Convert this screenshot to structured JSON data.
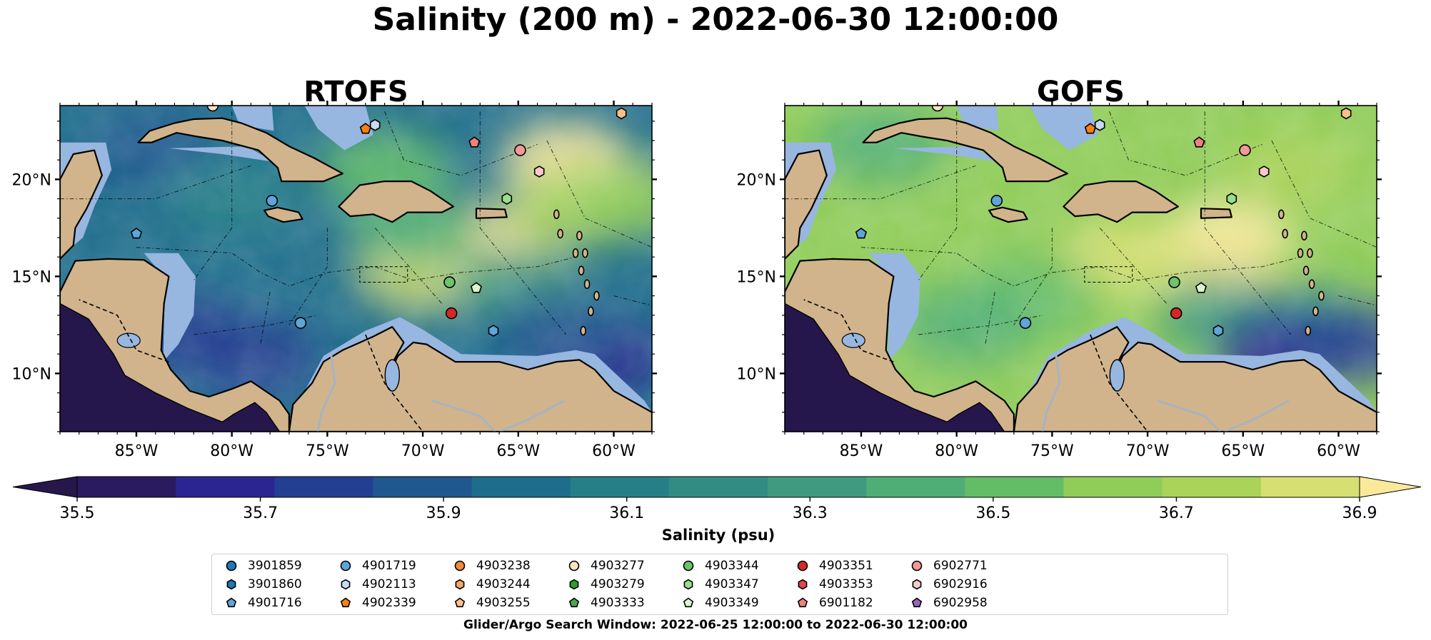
{
  "figure": {
    "title": "Salinity (200 m) - 2022-06-30 12:00:00",
    "search_window": "Glider/Argo Search Window: 2022-06-25 12:00:00 to 2022-06-30 12:00:00"
  },
  "colors": {
    "land": "#d1b48c",
    "shelf": "#97b6e0",
    "river": "#a7b3c3",
    "frame": "#000000",
    "colormap": [
      "#2a1a5e",
      "#2b2591",
      "#233f91",
      "#1f588f",
      "#1e6d8c",
      "#267f87",
      "#328c84",
      "#3f9a80",
      "#4fae75",
      "#62bd66",
      "#8fcc58",
      "#aad359",
      "#d6df71"
    ],
    "over": "#fbe99b",
    "under": "#25174c"
  },
  "chart_data": [
    {
      "type": "heatmap",
      "panel": "left",
      "title": "RTOFS",
      "field": "Salinity (psu)",
      "xlim": [
        -89.0,
        -58.0
      ],
      "ylim": [
        7.0,
        23.8
      ],
      "xticks": [
        {
          "value": -85,
          "label": "85°W"
        },
        {
          "value": -80,
          "label": "80°W"
        },
        {
          "value": -75,
          "label": "75°W"
        },
        {
          "value": -70,
          "label": "70°W"
        },
        {
          "value": -65,
          "label": "65°W"
        },
        {
          "value": -60,
          "label": "60°W"
        }
      ],
      "yticks": [
        {
          "value": 10,
          "label": "10°N"
        },
        {
          "value": 15,
          "label": "15°N"
        },
        {
          "value": 20,
          "label": "20°N"
        }
      ],
      "background_level": 4,
      "patches": [
        {
          "lon": -62.5,
          "lat": 21.0,
          "level": 13
        },
        {
          "lon": -66.5,
          "lat": 16.8,
          "level": 13
        },
        {
          "lon": -70.0,
          "lat": 15.2,
          "level": 12
        },
        {
          "lon": -62.0,
          "lat": 18.5,
          "level": 11
        },
        {
          "lon": -59.0,
          "lat": 19.0,
          "level": 10
        },
        {
          "lon": -72.0,
          "lat": 20.5,
          "level": 9
        },
        {
          "lon": -70.5,
          "lat": 17.5,
          "level": 8
        },
        {
          "lon": -65.0,
          "lat": 14.5,
          "level": 7
        },
        {
          "lon": -84.0,
          "lat": 21.5,
          "level": 3
        },
        {
          "lon": -80.0,
          "lat": 19.0,
          "level": 5
        },
        {
          "lon": -79.0,
          "lat": 10.8,
          "level": 2
        },
        {
          "lon": -82.5,
          "lat": 12.0,
          "level": 2
        },
        {
          "lon": -61.0,
          "lat": 10.8,
          "level": 1
        },
        {
          "lon": -63.0,
          "lat": 12.3,
          "level": 3
        }
      ]
    },
    {
      "type": "heatmap",
      "panel": "right",
      "title": "GOFS",
      "field": "Salinity (psu)",
      "xlim": [
        -89.0,
        -58.0
      ],
      "ylim": [
        7.0,
        23.8
      ],
      "xticks": [
        {
          "value": -85,
          "label": "85°W"
        },
        {
          "value": -80,
          "label": "80°W"
        },
        {
          "value": -75,
          "label": "75°W"
        },
        {
          "value": -70,
          "label": "70°W"
        },
        {
          "value": -65,
          "label": "65°W"
        },
        {
          "value": -60,
          "label": "60°W"
        }
      ],
      "yticks": [
        {
          "value": 10,
          "label": "10°N"
        },
        {
          "value": 15,
          "label": "15°N"
        },
        {
          "value": 20,
          "label": "20°N"
        }
      ],
      "background_level": 10,
      "patches": [
        {
          "lon": -66.0,
          "lat": 16.8,
          "level": 13
        },
        {
          "lon": -71.0,
          "lat": 16.0,
          "level": 12
        },
        {
          "lon": -62.5,
          "lat": 20.5,
          "level": 11
        },
        {
          "lon": -76.0,
          "lat": 14.0,
          "level": 9
        },
        {
          "lon": -79.5,
          "lat": 12.5,
          "level": 8
        },
        {
          "lon": -66.0,
          "lat": 13.0,
          "level": 7
        },
        {
          "lon": -62.0,
          "lat": 12.5,
          "level": 5
        },
        {
          "lon": -84.0,
          "lat": 21.8,
          "level": 8
        },
        {
          "lon": -63.0,
          "lat": 11.0,
          "level": 1
        },
        {
          "lon": -59.0,
          "lat": 11.5,
          "level": 2
        }
      ]
    },
    {
      "type": "colorbar",
      "label": "Salinity (psu)",
      "range": [
        35.5,
        36.9
      ],
      "levels": 14,
      "extend": "both",
      "ticks": [
        {
          "value": 35.5,
          "label": "35.5"
        },
        {
          "value": 35.7,
          "label": "35.7"
        },
        {
          "value": 35.9,
          "label": "35.9"
        },
        {
          "value": 36.1,
          "label": "36.1"
        },
        {
          "value": 36.3,
          "label": "36.3"
        },
        {
          "value": 36.5,
          "label": "36.5"
        },
        {
          "value": 36.7,
          "label": "36.7"
        },
        {
          "value": 36.9,
          "label": "36.9"
        }
      ]
    }
  ],
  "observations": [
    {
      "id": "3901859",
      "marker": "circle",
      "color": "#1f77b4",
      "lon": null,
      "lat": null
    },
    {
      "id": "3901860",
      "marker": "hexagon",
      "color": "#1f77b4",
      "lon": null,
      "lat": null
    },
    {
      "id": "4901716",
      "marker": "pentagon",
      "color": "#5fa4da",
      "lon": -85.0,
      "lat": 17.2
    },
    {
      "id": "4901719",
      "marker": "circle",
      "color": "#5fa4da",
      "lon": -76.4,
      "lat": 12.6
    },
    {
      "id": "4902113",
      "marker": "hexagon",
      "color": "#c6dbef",
      "lon": -72.5,
      "lat": 22.8
    },
    {
      "id": "4902339",
      "marker": "pentagon",
      "color": "#ff7f0e",
      "lon": -73.0,
      "lat": 22.6
    },
    {
      "id": "4903238",
      "marker": "circle",
      "color": "#f08a3c",
      "lon": null,
      "lat": null
    },
    {
      "id": "4903244",
      "marker": "hexagon",
      "color": "#f5a46a",
      "lon": null,
      "lat": null
    },
    {
      "id": "4903255",
      "marker": "pentagon",
      "color": "#fcbf8b",
      "lon": null,
      "lat": null
    },
    {
      "id": "4903277",
      "marker": "circle",
      "color": "#fde1c1",
      "lon": -81.0,
      "lat": 23.8
    },
    {
      "id": "4903279",
      "marker": "hexagon",
      "color": "#2ca02c",
      "lon": null,
      "lat": null
    },
    {
      "id": "4903333",
      "marker": "pentagon",
      "color": "#4aa84a",
      "lon": null,
      "lat": null
    },
    {
      "id": "4903344",
      "marker": "circle",
      "color": "#6cc46c",
      "lon": -68.6,
      "lat": 14.7
    },
    {
      "id": "4903347",
      "marker": "hexagon",
      "color": "#98df8a",
      "lon": -65.6,
      "lat": 19.0
    },
    {
      "id": "4903349",
      "marker": "pentagon",
      "color": "#d9f6cf",
      "lon": -67.2,
      "lat": 14.4
    },
    {
      "id": "4903351",
      "marker": "circle",
      "color": "#d62728",
      "lon": -68.5,
      "lat": 13.1
    },
    {
      "id": "4903353",
      "marker": "hexagon",
      "color": "#e0474a",
      "lon": null,
      "lat": null
    },
    {
      "id": "6901182",
      "marker": "pentagon",
      "color": "#f08080",
      "lon": -67.3,
      "lat": 21.9
    },
    {
      "id": "6902771",
      "marker": "circle",
      "color": "#f29898",
      "lon": -64.9,
      "lat": 21.5
    },
    {
      "id": "6902916",
      "marker": "hexagon",
      "color": "#fbc8c8",
      "lon": -63.9,
      "lat": 20.4
    },
    {
      "id": "6902958",
      "marker": "pentagon",
      "color": "#9467bd",
      "lon": null,
      "lat": null
    },
    {
      "id": "",
      "marker": "hexagon",
      "color": "#fcbf8b",
      "lon": -59.6,
      "lat": 23.4
    },
    {
      "id": "",
      "marker": "circle",
      "color": "#5fa4da",
      "lon": -77.9,
      "lat": 18.9
    },
    {
      "id": "",
      "marker": "hexagon",
      "color": "#5fa4da",
      "lon": -66.3,
      "lat": 12.2
    }
  ]
}
